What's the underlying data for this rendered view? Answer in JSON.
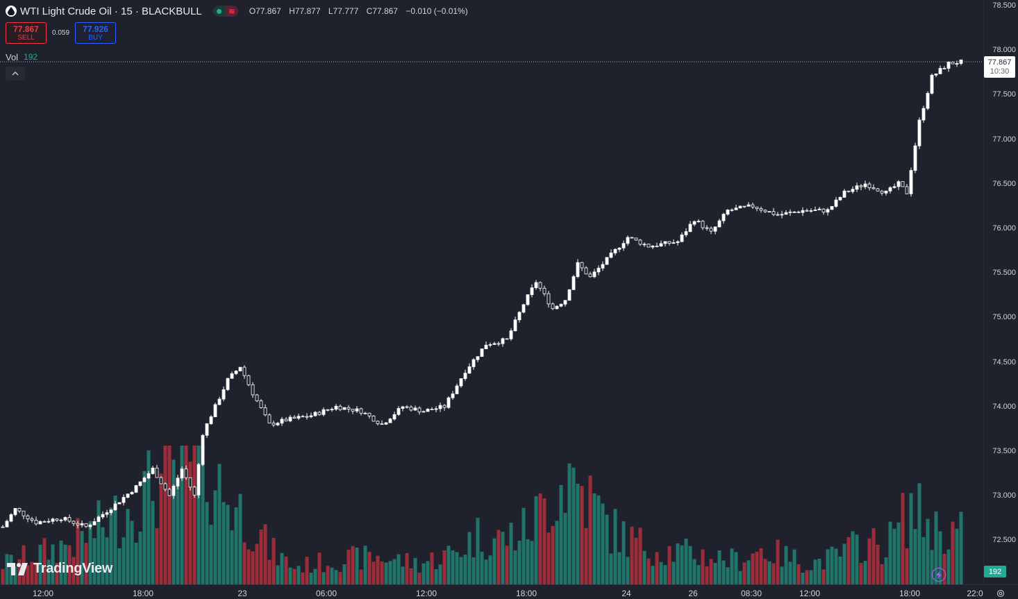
{
  "header": {
    "symbol_title": "WTI Light Crude Oil · 15 · BLACKBULL",
    "symbol_icon": "oil-drop-icon",
    "ohlc": {
      "open": "O77.867",
      "high": "H77.877",
      "low": "L77.777",
      "close": "C77.867",
      "change": "−0.010 (−0.01%)"
    }
  },
  "trade": {
    "sell_price": "77.867",
    "sell_label": "SELL",
    "spread": "0.059",
    "buy_price": "77.926",
    "buy_label": "BUY"
  },
  "volume_legend": {
    "label": "Vol",
    "value": "192"
  },
  "last_price": {
    "price": "77.867",
    "countdown": "10:30"
  },
  "volume_badge": "192",
  "branding": "TradingView",
  "colors": {
    "up": "#ffffff",
    "down": "#ffffff",
    "vol_up": "#22ab94",
    "vol_down": "#f23645",
    "background": "#1f222c"
  },
  "chart_data": {
    "type": "candlestick",
    "y_axis_labels": [
      "78.500",
      "78.000",
      "77.500",
      "77.000",
      "76.500",
      "76.000",
      "75.500",
      "75.000",
      "74.500",
      "74.000",
      "73.500",
      "73.000",
      "72.500"
    ],
    "ylim": [
      72.3,
      78.55
    ],
    "x_axis_labels": [
      "12:00",
      "18:00",
      "23",
      "06:00",
      "12:00",
      "18:00",
      "24",
      "26",
      "08:30",
      "12:00",
      "18:00",
      "22:0"
    ],
    "price_keypoints": [
      [
        0,
        72.65
      ],
      [
        3,
        72.85
      ],
      [
        8,
        72.7
      ],
      [
        14,
        72.75
      ],
      [
        20,
        72.65
      ],
      [
        27,
        72.9
      ],
      [
        32,
        73.1
      ],
      [
        36,
        73.3
      ],
      [
        40,
        73.0
      ],
      [
        43,
        73.3
      ],
      [
        46,
        73.0
      ],
      [
        48,
        73.7
      ],
      [
        51,
        74.0
      ],
      [
        54,
        74.3
      ],
      [
        57,
        74.45
      ],
      [
        60,
        74.15
      ],
      [
        64,
        73.8
      ],
      [
        68,
        73.85
      ],
      [
        74,
        73.9
      ],
      [
        80,
        74.0
      ],
      [
        86,
        73.95
      ],
      [
        91,
        73.8
      ],
      [
        96,
        74.0
      ],
      [
        101,
        73.95
      ],
      [
        106,
        74.0
      ],
      [
        111,
        74.4
      ],
      [
        116,
        74.7
      ],
      [
        121,
        74.75
      ],
      [
        125,
        75.15
      ],
      [
        128,
        75.4
      ],
      [
        132,
        75.1
      ],
      [
        135,
        75.2
      ],
      [
        138,
        75.6
      ],
      [
        141,
        75.45
      ],
      [
        144,
        75.6
      ],
      [
        150,
        75.9
      ],
      [
        155,
        75.8
      ],
      [
        162,
        75.85
      ],
      [
        166,
        76.1
      ],
      [
        170,
        75.95
      ],
      [
        174,
        76.2
      ],
      [
        180,
        76.25
      ],
      [
        186,
        76.15
      ],
      [
        192,
        76.2
      ],
      [
        198,
        76.2
      ],
      [
        202,
        76.4
      ],
      [
        207,
        76.5
      ],
      [
        212,
        76.4
      ],
      [
        215,
        76.5
      ],
      [
        217,
        76.4
      ],
      [
        220,
        77.2
      ],
      [
        223,
        77.7
      ],
      [
        227,
        77.85
      ],
      [
        230,
        77.867
      ]
    ],
    "volume_keypoints": [
      [
        0,
        30
      ],
      [
        12,
        50
      ],
      [
        20,
        70
      ],
      [
        28,
        100
      ],
      [
        36,
        140
      ],
      [
        44,
        160
      ],
      [
        48,
        190
      ],
      [
        52,
        140
      ],
      [
        56,
        110
      ],
      [
        60,
        90
      ],
      [
        64,
        50
      ],
      [
        70,
        25
      ],
      [
        80,
        35
      ],
      [
        90,
        40
      ],
      [
        100,
        30
      ],
      [
        108,
        45
      ],
      [
        114,
        70
      ],
      [
        120,
        65
      ],
      [
        126,
        80
      ],
      [
        132,
        130
      ],
      [
        136,
        160
      ],
      [
        140,
        130
      ],
      [
        146,
        80
      ],
      [
        152,
        60
      ],
      [
        158,
        50
      ],
      [
        164,
        45
      ],
      [
        170,
        40
      ],
      [
        176,
        35
      ],
      [
        182,
        50
      ],
      [
        188,
        40
      ],
      [
        194,
        30
      ],
      [
        200,
        40
      ],
      [
        206,
        60
      ],
      [
        212,
        55
      ],
      [
        218,
        110
      ],
      [
        224,
        80
      ],
      [
        230,
        75
      ]
    ]
  }
}
